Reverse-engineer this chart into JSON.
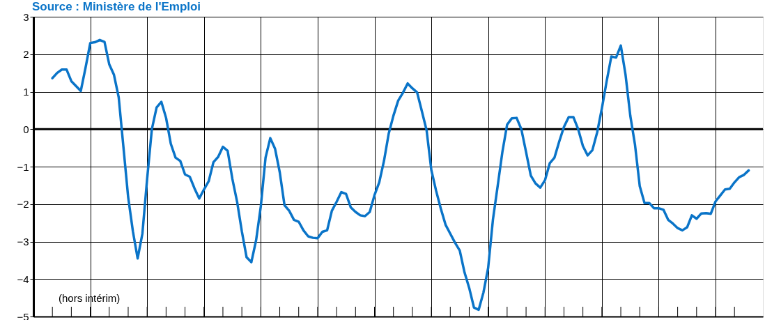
{
  "chart_data": {
    "type": "line",
    "categories": [
      null,
      null,
      null,
      null,
      null,
      null,
      null,
      null,
      null,
      null,
      null,
      null,
      null,
      null,
      null,
      null,
      null,
      null,
      null,
      null,
      null,
      null,
      null,
      null,
      null,
      null,
      null,
      null,
      null,
      null,
      null,
      null,
      null,
      null,
      null,
      null,
      null,
      null,
      null,
      null,
      null,
      null,
      null,
      null,
      null,
      null,
      null,
      null,
      null,
      null,
      null,
      null,
      null,
      null,
      null,
      null,
      null,
      null,
      null,
      null,
      null,
      null,
      null,
      null,
      null,
      null,
      null,
      null,
      null,
      null,
      null,
      null,
      null,
      null,
      null,
      null,
      null,
      null,
      null,
      null,
      null,
      null,
      null,
      null,
      null,
      null,
      null,
      null,
      null,
      null,
      null,
      null,
      null,
      null,
      null,
      null,
      null,
      null,
      null,
      null,
      null,
      null,
      null,
      null,
      null,
      null,
      null,
      null,
      null,
      null,
      null,
      null,
      null,
      null,
      null,
      null,
      null,
      null,
      null,
      null,
      null,
      null,
      null,
      null,
      null,
      null,
      null,
      null,
      null,
      null,
      null,
      null,
      null,
      null,
      null,
      null,
      null,
      null,
      null,
      null,
      null,
      null,
      null,
      null,
      null,
      null,
      null,
      null
    ],
    "series": [
      {
        "color": "#0a74c8",
        "values": [
          1.36,
          1.5,
          1.59,
          1.59,
          1.28,
          1.15,
          1.02,
          1.64,
          2.3,
          2.32,
          2.38,
          2.33,
          1.73,
          1.45,
          0.85,
          -0.48,
          -1.82,
          -2.73,
          -3.45,
          -2.79,
          -1.33,
          0,
          0.58,
          0.73,
          0.3,
          -0.39,
          -0.76,
          -0.85,
          -1.21,
          -1.27,
          -1.58,
          -1.85,
          -1.61,
          -1.39,
          -0.88,
          -0.74,
          -0.47,
          -0.58,
          -1.33,
          -1.94,
          -2.73,
          -3.42,
          -3.55,
          -2.97,
          -2.06,
          -0.76,
          -0.24,
          -0.52,
          -1.15,
          -2.03,
          -2.18,
          -2.42,
          -2.47,
          -2.7,
          -2.86,
          -2.9,
          -2.91,
          -2.74,
          -2.7,
          -2.18,
          -1.94,
          -1.68,
          -1.73,
          -2.09,
          -2.21,
          -2.3,
          -2.32,
          -2.21,
          -1.76,
          -1.42,
          -0.85,
          -0.12,
          0.36,
          0.76,
          0.97,
          1.22,
          1.09,
          0.98,
          0.48,
          -0.03,
          -1.09,
          -1.64,
          -2.12,
          -2.55,
          -2.79,
          -3.03,
          -3.24,
          -3.82,
          -4.24,
          -4.76,
          -4.82,
          -4.36,
          -3.7,
          -2.42,
          -1.52,
          -0.61,
          0.12,
          0.29,
          0.3,
          0,
          -0.61,
          -1.24,
          -1.45,
          -1.56,
          -1.36,
          -0.91,
          -0.76,
          -0.33,
          0.06,
          0.32,
          0.32,
          0,
          -0.45,
          -0.7,
          -0.56,
          -0.09,
          0.55,
          1.27,
          1.94,
          1.91,
          2.23,
          1.45,
          0.36,
          -0.42,
          -1.52,
          -1.97,
          -1.97,
          -2.11,
          -2.11,
          -2.15,
          -2.42,
          -2.52,
          -2.64,
          -2.7,
          -2.62,
          -2.3,
          -2.39,
          -2.25,
          -2.24,
          -2.26,
          -1.93,
          -1.77,
          -1.61,
          -1.59,
          -1.42,
          -1.28,
          -1.22,
          -1.1
        ]
      }
    ],
    "ylim": [
      -5,
      3
    ],
    "yticks": [
      -5,
      -4,
      -3,
      -2,
      -1,
      0,
      1,
      2,
      3
    ],
    "grid": true,
    "ref_lines": [
      {
        "axis": "y",
        "value": 0,
        "color": "#000000"
      }
    ],
    "annotations": [
      "Source : Ministère de l'Emploi",
      "(hors intérim)"
    ]
  }
}
